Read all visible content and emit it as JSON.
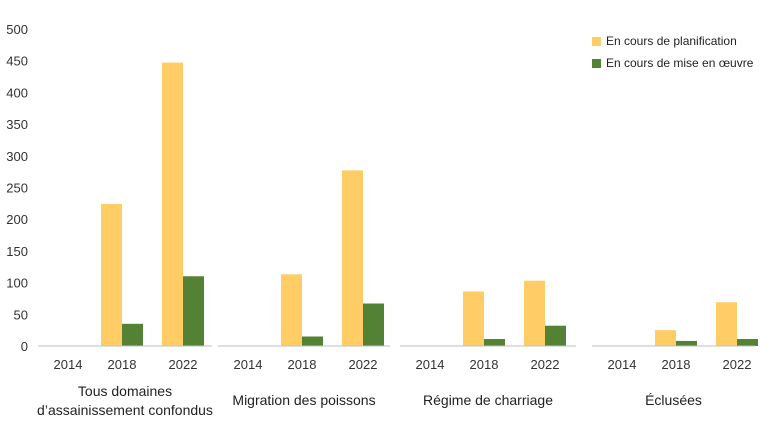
{
  "chart_data": {
    "type": "bar",
    "title": "",
    "ylim": [
      0,
      500
    ],
    "yticks": [
      0,
      50,
      100,
      150,
      200,
      250,
      300,
      350,
      400,
      450,
      500
    ],
    "grid": false,
    "legend_position": "top-right",
    "groups": [
      {
        "label_lines": [
          "Tous domaines",
          "d’assainissement confondus"
        ],
        "years": [
          "2014",
          "2018",
          "2022"
        ],
        "series_values": [
          [
            0,
            224,
            447
          ],
          [
            0,
            35,
            110
          ]
        ]
      },
      {
        "label_lines": [
          "Migration des poissons"
        ],
        "years": [
          "2014",
          "2018",
          "2022"
        ],
        "series_values": [
          [
            0,
            113,
            277
          ],
          [
            0,
            15,
            67
          ]
        ]
      },
      {
        "label_lines": [
          "Régime de charriage"
        ],
        "years": [
          "2014",
          "2018",
          "2022"
        ],
        "series_values": [
          [
            0,
            86,
            103
          ],
          [
            0,
            11,
            32
          ]
        ]
      },
      {
        "label_lines": [
          "Éclusées"
        ],
        "years": [
          "2014",
          "2018",
          "2022"
        ],
        "series_values": [
          [
            0,
            25,
            69
          ],
          [
            0,
            8,
            11
          ]
        ]
      }
    ],
    "series": [
      {
        "name": "En cours de planification",
        "color": "#FFCC66"
      },
      {
        "name": "En cours de mise en œuvre",
        "color": "#548235"
      }
    ]
  }
}
